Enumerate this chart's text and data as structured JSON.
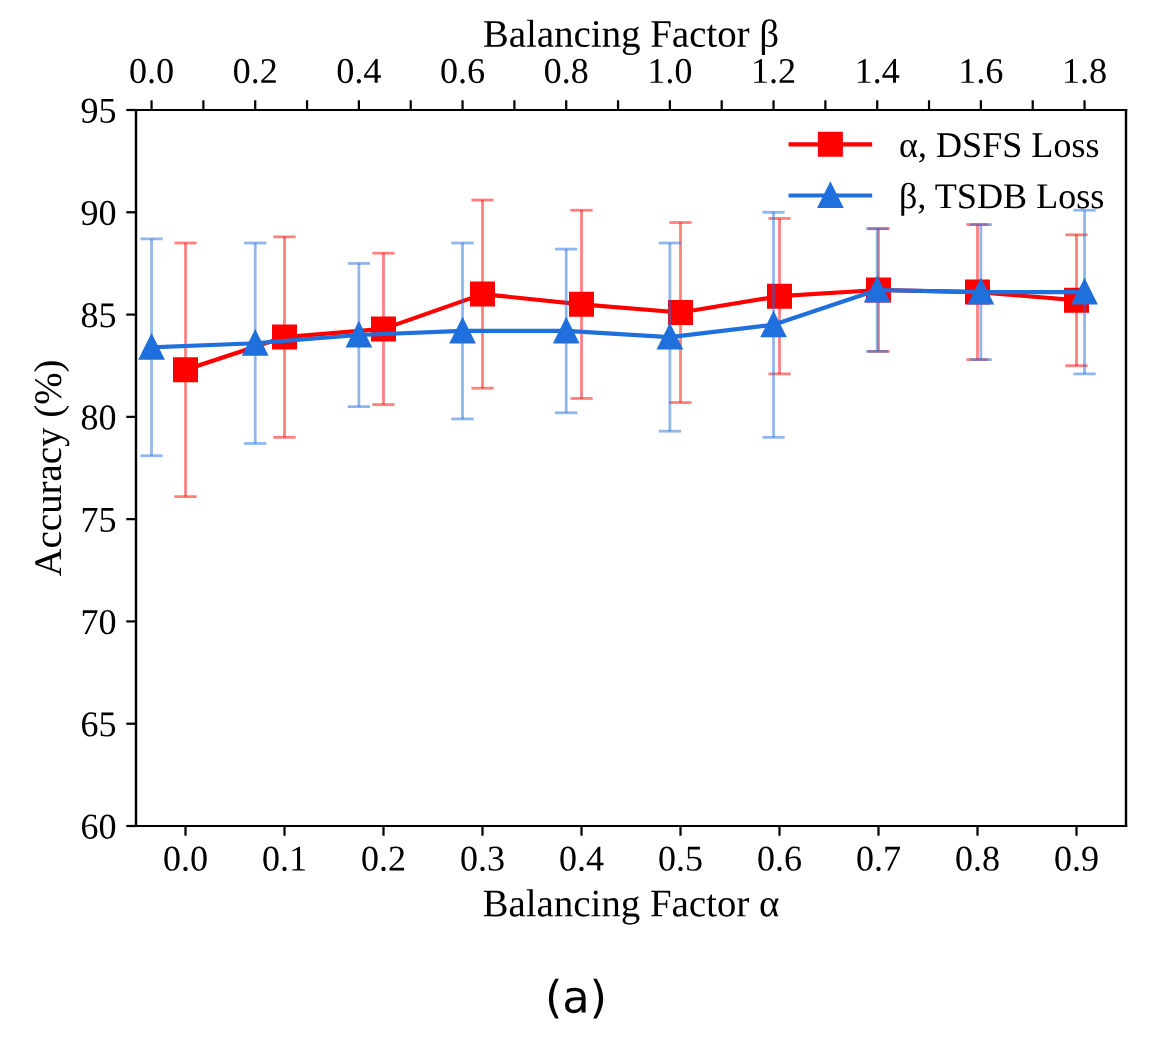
{
  "chart_data": {
    "type": "line",
    "xlabel": "Balancing Factor α",
    "x2label": "Balancing Factor β",
    "ylabel": "Accuracy (%)",
    "ylim": [
      60,
      95
    ],
    "yticks": [
      60,
      65,
      70,
      75,
      80,
      85,
      90,
      95
    ],
    "xlim": [
      -0.05,
      0.95
    ],
    "xticks": [
      {
        "value": 0.0,
        "label": "0.0"
      },
      {
        "value": 0.1,
        "label": "0.1"
      },
      {
        "value": 0.2,
        "label": "0.2"
      },
      {
        "value": 0.3,
        "label": "0.3"
      },
      {
        "value": 0.4,
        "label": "0.4"
      },
      {
        "value": 0.5,
        "label": "0.5"
      },
      {
        "value": 0.6,
        "label": "0.6"
      },
      {
        "value": 0.7,
        "label": "0.7"
      },
      {
        "value": 0.8,
        "label": "0.8"
      },
      {
        "value": 0.9,
        "label": "0.9"
      }
    ],
    "x2lim": [
      -0.03,
      1.88
    ],
    "x2ticks": [
      {
        "value": 0.0,
        "label": "0.0"
      },
      {
        "value": 0.1,
        "label": null
      },
      {
        "value": 0.2,
        "label": "0.2"
      },
      {
        "value": 0.3,
        "label": null
      },
      {
        "value": 0.4,
        "label": "0.4"
      },
      {
        "value": 0.5,
        "label": null
      },
      {
        "value": 0.6,
        "label": "0.6"
      },
      {
        "value": 0.7,
        "label": null
      },
      {
        "value": 0.8,
        "label": "0.8"
      },
      {
        "value": 0.9,
        "label": null
      },
      {
        "value": 1.0,
        "label": "1.0"
      },
      {
        "value": 1.1,
        "label": null
      },
      {
        "value": 1.2,
        "label": "1.2"
      },
      {
        "value": 1.3,
        "label": null
      },
      {
        "value": 1.4,
        "label": "1.4"
      },
      {
        "value": 1.5,
        "label": null
      },
      {
        "value": 1.6,
        "label": "1.6"
      },
      {
        "value": 1.7,
        "label": null
      },
      {
        "value": 1.8,
        "label": "1.8"
      }
    ],
    "series": [
      {
        "name": "α, DSFS Loss",
        "color": "#ff0000",
        "marker": "square",
        "x": [
          0.0,
          0.1,
          0.2,
          0.3,
          0.4,
          0.5,
          0.6,
          0.7,
          0.8,
          0.9
        ],
        "values": [
          82.3,
          83.9,
          84.3,
          86.0,
          85.5,
          85.1,
          85.9,
          86.2,
          86.1,
          85.7
        ],
        "errors": [
          6.2,
          4.9,
          3.7,
          4.6,
          4.6,
          4.4,
          3.8,
          3.0,
          3.3,
          3.2
        ]
      },
      {
        "name": "β, TSDB Loss",
        "color": "#1f6fdc",
        "marker": "triangle",
        "axis": "x2",
        "x": [
          0.0,
          0.2,
          0.4,
          0.6,
          0.8,
          1.0,
          1.2,
          1.4,
          1.6,
          1.8
        ],
        "values": [
          83.4,
          83.6,
          84.0,
          84.2,
          84.2,
          83.9,
          84.5,
          86.2,
          86.1,
          86.1
        ],
        "errors": [
          5.3,
          4.9,
          3.5,
          4.3,
          4.0,
          4.6,
          5.5,
          3.0,
          3.3,
          4.0
        ]
      }
    ],
    "legend": "top right",
    "grid": false,
    "annotations": [
      "(a)"
    ]
  }
}
